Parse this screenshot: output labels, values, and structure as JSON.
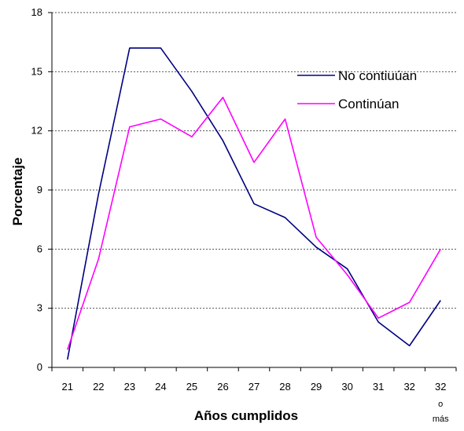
{
  "chart_data": {
    "type": "line",
    "title": "",
    "xlabel": "Años cumplidos",
    "ylabel": "Porcentaje",
    "categories": [
      "21",
      "22",
      "23",
      "24",
      "25",
      "26",
      "27",
      "28",
      "29",
      "30",
      "31",
      "32",
      "32 o más"
    ],
    "category_labels": [
      {
        "main": "21",
        "sub": ""
      },
      {
        "main": "22",
        "sub": ""
      },
      {
        "main": "23",
        "sub": ""
      },
      {
        "main": "24",
        "sub": ""
      },
      {
        "main": "25",
        "sub": ""
      },
      {
        "main": "26",
        "sub": ""
      },
      {
        "main": "27",
        "sub": ""
      },
      {
        "main": "28",
        "sub": ""
      },
      {
        "main": "29",
        "sub": ""
      },
      {
        "main": "30",
        "sub": ""
      },
      {
        "main": "31",
        "sub": ""
      },
      {
        "main": "32",
        "sub": ""
      },
      {
        "main": "32",
        "sub": "o más"
      }
    ],
    "ylim": [
      0,
      18
    ],
    "yticks": [
      0,
      3,
      6,
      9,
      12,
      15,
      18
    ],
    "grid": true,
    "legend_position": "top-right",
    "series": [
      {
        "name": "No contiuúan",
        "color": "#000080",
        "values": [
          0.4,
          8.8,
          16.2,
          16.2,
          14.0,
          11.5,
          8.3,
          7.6,
          6.1,
          5.0,
          2.3,
          1.1,
          3.4
        ]
      },
      {
        "name": "Continúan",
        "color": "#FF00FF",
        "values": [
          0.9,
          5.5,
          12.2,
          12.6,
          11.7,
          13.7,
          10.4,
          12.6,
          6.6,
          4.7,
          2.5,
          3.3,
          6.0
        ]
      }
    ]
  }
}
